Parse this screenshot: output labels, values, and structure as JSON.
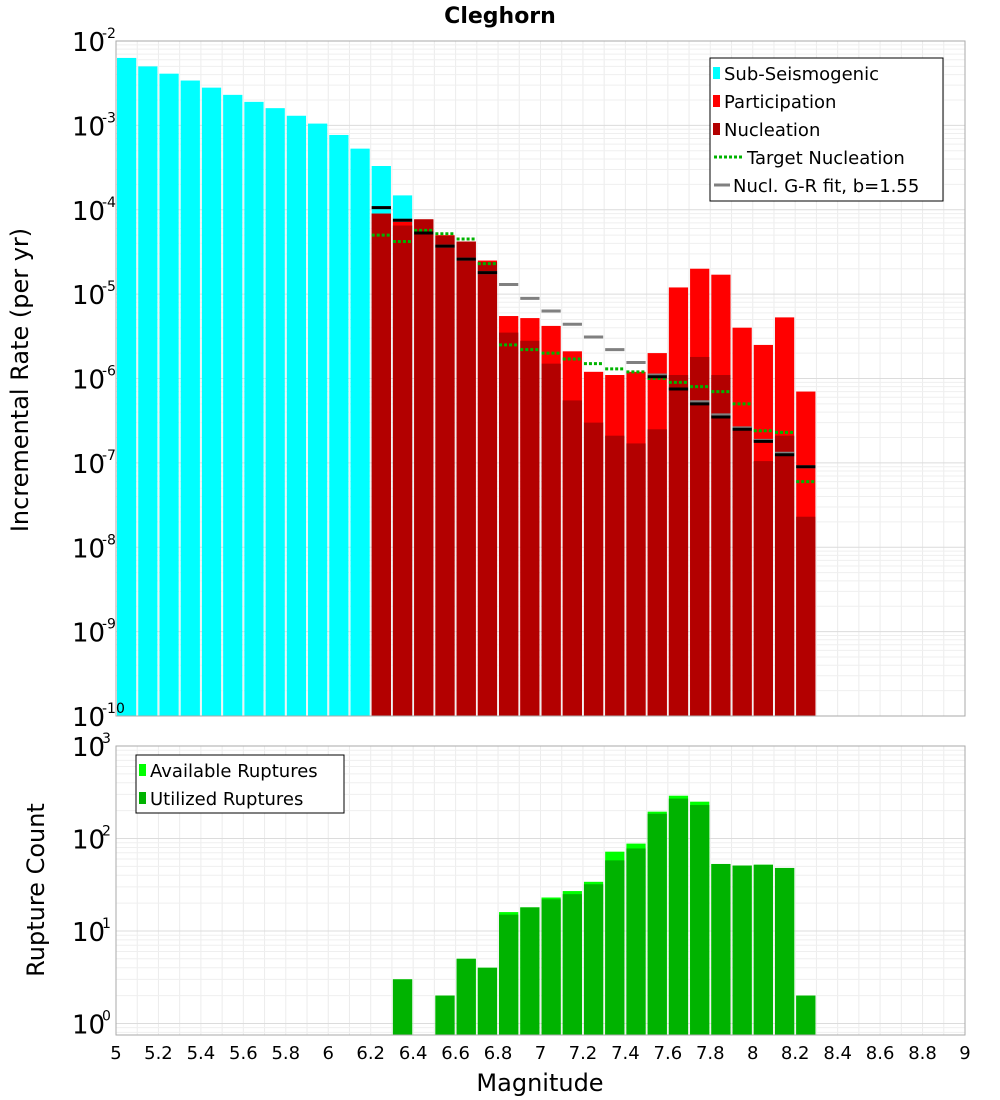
{
  "chart_data": [
    {
      "type": "bar",
      "title": "Cleghorn",
      "xlabel": "",
      "ylabel": "Incremental Rate (per yr)",
      "yscale": "log",
      "ylim": [
        1e-10,
        0.01
      ],
      "xlim": [
        5,
        9
      ],
      "bin_width": 0.1,
      "grid": true,
      "legend_position": "top-right",
      "y_tick_exponents": [
        "-10",
        "-9",
        "-8",
        "-7",
        "-6",
        "-5",
        "-4",
        "-3",
        "-2"
      ],
      "legend": [
        "Sub-Seismogenic",
        "Participation",
        "Nucleation",
        "Target Nucleation",
        "Nucl. G-R fit, b=1.55"
      ],
      "colors": {
        "sub": "#00ffff",
        "participation": "#ff0000",
        "nucleation": "#b30000",
        "target": "#00b300",
        "fit": "#808080"
      },
      "series": [
        {
          "name": "Sub-Seismogenic",
          "kind": "bar",
          "x": [
            5.05,
            5.15,
            5.25,
            5.35,
            5.45,
            5.55,
            5.65,
            5.75,
            5.85,
            5.95,
            6.05,
            6.15,
            6.25,
            6.35
          ],
          "values": [
            0.0063,
            0.005,
            0.0041,
            0.0034,
            0.0028,
            0.0023,
            0.0019,
            0.0016,
            0.0013,
            0.00105,
            0.00077,
            0.00053,
            0.00033,
            0.000148
          ]
        },
        {
          "name": "Participation",
          "kind": "bar",
          "x": [
            6.25,
            6.35,
            6.45,
            6.55,
            6.65,
            6.75,
            6.85,
            6.95,
            7.05,
            7.15,
            7.25,
            7.35,
            7.45,
            7.55,
            7.65,
            7.75,
            7.85,
            7.95,
            8.05,
            8.15,
            8.25
          ],
          "values": [
            9e-05,
            7.2e-05,
            7.7e-05,
            5e-05,
            4.2e-05,
            2.5e-05,
            5.5e-06,
            5.2e-06,
            4.2e-06,
            2.1e-06,
            1.2e-06,
            1.1e-06,
            1.2e-06,
            2e-06,
            1.2e-05,
            2e-05,
            1.7e-05,
            4e-06,
            2.5e-06,
            5.3e-06,
            7e-07
          ]
        },
        {
          "name": "Nucleation",
          "kind": "bar",
          "x": [
            6.25,
            6.35,
            6.45,
            6.55,
            6.65,
            6.75,
            6.85,
            6.95,
            7.05,
            7.15,
            7.25,
            7.35,
            7.45,
            7.55,
            7.65,
            7.75,
            7.85,
            7.95,
            8.05,
            8.15,
            8.25
          ],
          "values": [
            9e-05,
            6.5e-05,
            7.7e-05,
            4.9e-05,
            4.2e-05,
            2.4e-05,
            3.5e-06,
            2.8e-06,
            1.5e-06,
            5.5e-07,
            3e-07,
            2.1e-07,
            1.7e-07,
            2.5e-07,
            1.1e-06,
            1.8e-06,
            1.1e-06,
            2.7e-07,
            1.05e-07,
            2.1e-07,
            2.3e-08
          ]
        },
        {
          "name": "Target Nucleation",
          "kind": "step",
          "x": [
            6.25,
            6.35,
            6.45,
            6.55,
            6.65,
            6.75,
            6.85,
            6.95,
            7.05,
            7.15,
            7.25,
            7.35,
            7.45,
            7.55,
            7.65,
            7.75,
            7.85,
            7.95,
            8.05,
            8.15,
            8.25
          ],
          "values": [
            5e-05,
            4.2e-05,
            5.7e-05,
            5.2e-05,
            4.5e-05,
            2.3e-05,
            2.5e-06,
            2.2e-06,
            2e-06,
            1.7e-06,
            1.5e-06,
            1.3e-06,
            1.2e-06,
            1e-06,
            9e-07,
            8e-07,
            7e-07,
            5e-07,
            2.4e-07,
            2.3e-07,
            6e-08
          ]
        },
        {
          "name": "Nucl. G-R fit, b=1.55",
          "kind": "step",
          "x": [
            6.25,
            6.35,
            6.45,
            6.55,
            6.65,
            6.75,
            6.85,
            6.95,
            7.05,
            7.15,
            7.25,
            7.35,
            7.45,
            7.55,
            7.65,
            7.75,
            7.85,
            7.95,
            8.05,
            8.15,
            8.25
          ],
          "values": [
            0.000106,
            7.5e-05,
            5.3e-05,
            3.7e-05,
            2.6e-05,
            1.8e-05,
            1.3e-05,
            8.9e-06,
            6.3e-06,
            4.4e-06,
            3.1e-06,
            2.2e-06,
            1.55e-06,
            1.1e-06,
            7.5e-07,
            5.3e-07,
            3.7e-07,
            2.6e-07,
            1.85e-07,
            1.3e-07,
            9e-08
          ]
        },
        {
          "name": "Nucleation marks",
          "kind": "step",
          "color": "#000000",
          "x": [
            6.25,
            6.35,
            6.45,
            6.55,
            6.65,
            6.75,
            7.55,
            7.65,
            7.75,
            7.85,
            7.95,
            8.05,
            8.15,
            8.25
          ],
          "values": [
            0.000106,
            7.5e-05,
            5.3e-05,
            3.7e-05,
            2.6e-05,
            1.8e-05,
            1.05e-06,
            7.5e-07,
            5e-07,
            3.5e-07,
            2.5e-07,
            1.8e-07,
            1.25e-07,
            9e-08
          ]
        }
      ]
    },
    {
      "type": "bar",
      "xlabel": "Magnitude",
      "ylabel": "Rupture Count",
      "yscale": "log",
      "ylim": [
        0.75,
        1000
      ],
      "xlim": [
        5,
        9
      ],
      "bin_width": 0.1,
      "grid": true,
      "legend_position": "top-left",
      "y_tick_exponents": [
        "0",
        "1",
        "2",
        "3"
      ],
      "x_ticks": [
        "5",
        "5.2",
        "5.4",
        "5.6",
        "5.8",
        "6",
        "6.2",
        "6.4",
        "6.6",
        "6.8",
        "7",
        "7.2",
        "7.4",
        "7.6",
        "7.8",
        "8",
        "8.2",
        "8.4",
        "8.6",
        "8.8",
        "9"
      ],
      "legend": [
        "Available Ruptures",
        "Utilized Ruptures"
      ],
      "colors": {
        "available": "#00ff00",
        "utilized": "#00b300"
      },
      "series": [
        {
          "name": "Available Ruptures",
          "x": [
            6.35,
            6.55,
            6.65,
            6.75,
            6.85,
            6.95,
            7.05,
            7.15,
            7.25,
            7.35,
            7.45,
            7.55,
            7.65,
            7.75,
            7.85,
            7.95,
            8.05,
            8.15,
            8.25
          ],
          "values": [
            3,
            2,
            5,
            4,
            16,
            18,
            23,
            27,
            34,
            72,
            88,
            195,
            290,
            250,
            53,
            51,
            52,
            48,
            2
          ]
        },
        {
          "name": "Utilized Ruptures",
          "x": [
            6.35,
            6.55,
            6.65,
            6.75,
            6.85,
            6.95,
            7.05,
            7.15,
            7.25,
            7.35,
            7.45,
            7.55,
            7.65,
            7.75,
            7.85,
            7.95,
            8.05,
            8.15,
            8.25
          ],
          "values": [
            3,
            2,
            5,
            4,
            15,
            18,
            22,
            25,
            32,
            58,
            78,
            185,
            270,
            230,
            53,
            51,
            52,
            48,
            2
          ]
        }
      ]
    }
  ]
}
